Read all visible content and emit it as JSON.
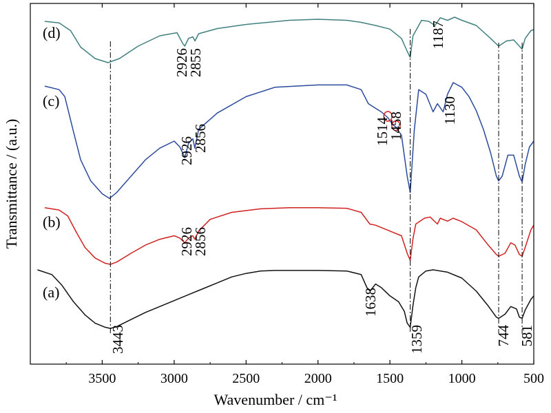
{
  "chart_data": {
    "type": "line",
    "xlabel": "Wavenumber / cm⁻¹",
    "ylabel": "Transmittance / (a.u.)",
    "xlim": [
      4000,
      500
    ],
    "x_inverted": true,
    "x_ticks": [
      "3500",
      "3000",
      "2500",
      "2000",
      "1500",
      "1000",
      "500"
    ],
    "x_tick_values": [
      3500,
      3000,
      2500,
      2000,
      1500,
      1000,
      500
    ],
    "grid": false,
    "series": [
      {
        "name": "(d)",
        "color": "#3f7f7f",
        "points": [
          [
            3900,
            0.12
          ],
          [
            3800,
            0.15
          ],
          [
            3720,
            0.3
          ],
          [
            3650,
            0.62
          ],
          [
            3550,
            0.84
          ],
          [
            3460,
            0.92
          ],
          [
            3380,
            0.84
          ],
          [
            3250,
            0.6
          ],
          [
            3100,
            0.4
          ],
          [
            2980,
            0.34
          ],
          [
            2940,
            0.55
          ],
          [
            2926,
            0.6
          ],
          [
            2900,
            0.45
          ],
          [
            2870,
            0.42
          ],
          [
            2855,
            0.5
          ],
          [
            2830,
            0.36
          ],
          [
            2700,
            0.26
          ],
          [
            2500,
            0.18
          ],
          [
            2200,
            0.1
          ],
          [
            2000,
            0.08
          ],
          [
            1800,
            0.1
          ],
          [
            1700,
            0.14
          ],
          [
            1600,
            0.2
          ],
          [
            1500,
            0.27
          ],
          [
            1420,
            0.45
          ],
          [
            1380,
            0.7
          ],
          [
            1359,
            0.82
          ],
          [
            1340,
            0.4
          ],
          [
            1280,
            0.1
          ],
          [
            1230,
            0.12
          ],
          [
            1187,
            0.2
          ],
          [
            1150,
            0.05
          ],
          [
            1100,
            0.1
          ],
          [
            1050,
            0.04
          ],
          [
            1000,
            0.1
          ],
          [
            900,
            0.2
          ],
          [
            800,
            0.45
          ],
          [
            744,
            0.6
          ],
          [
            690,
            0.5
          ],
          [
            640,
            0.48
          ],
          [
            600,
            0.6
          ],
          [
            581,
            0.66
          ],
          [
            560,
            0.45
          ],
          [
            520,
            0.3
          ],
          [
            500,
            0.28
          ]
        ]
      },
      {
        "name": "(c)",
        "color": "#2b4a9c",
        "points": [
          [
            3900,
            0.03
          ],
          [
            3800,
            0.06
          ],
          [
            3760,
            0.12
          ],
          [
            3700,
            0.42
          ],
          [
            3650,
            0.66
          ],
          [
            3580,
            0.84
          ],
          [
            3500,
            0.95
          ],
          [
            3450,
            0.99
          ],
          [
            3400,
            0.94
          ],
          [
            3300,
            0.8
          ],
          [
            3200,
            0.66
          ],
          [
            3100,
            0.56
          ],
          [
            3000,
            0.5
          ],
          [
            2960,
            0.55
          ],
          [
            2926,
            0.64
          ],
          [
            2900,
            0.52
          ],
          [
            2870,
            0.48
          ],
          [
            2856,
            0.56
          ],
          [
            2830,
            0.4
          ],
          [
            2700,
            0.26
          ],
          [
            2500,
            0.12
          ],
          [
            2300,
            0.04
          ],
          [
            2000,
            0.02
          ],
          [
            1800,
            0.02
          ],
          [
            1700,
            0.06
          ],
          [
            1650,
            0.18
          ],
          [
            1600,
            0.22
          ],
          [
            1560,
            0.25
          ],
          [
            1514,
            0.3
          ],
          [
            1480,
            0.36
          ],
          [
            1458,
            0.38
          ],
          [
            1420,
            0.45
          ],
          [
            1380,
            0.8
          ],
          [
            1359,
            0.94
          ],
          [
            1330,
            0.4
          ],
          [
            1300,
            0.06
          ],
          [
            1250,
            0.1
          ],
          [
            1200,
            0.25
          ],
          [
            1170,
            0.18
          ],
          [
            1130,
            0.25
          ],
          [
            1100,
            0.1
          ],
          [
            1060,
            0.0
          ],
          [
            1000,
            0.04
          ],
          [
            950,
            0.12
          ],
          [
            900,
            0.24
          ],
          [
            850,
            0.4
          ],
          [
            800,
            0.6
          ],
          [
            760,
            0.8
          ],
          [
            744,
            0.84
          ],
          [
            720,
            0.8
          ],
          [
            680,
            0.62
          ],
          [
            640,
            0.62
          ],
          [
            600,
            0.8
          ],
          [
            581,
            0.85
          ],
          [
            560,
            0.7
          ],
          [
            530,
            0.55
          ],
          [
            500,
            0.5
          ]
        ]
      },
      {
        "name": "(b)",
        "color": "#d22020",
        "points": [
          [
            3900,
            0.02
          ],
          [
            3800,
            0.06
          ],
          [
            3740,
            0.16
          ],
          [
            3680,
            0.44
          ],
          [
            3620,
            0.7
          ],
          [
            3550,
            0.88
          ],
          [
            3480,
            0.97
          ],
          [
            3443,
            0.99
          ],
          [
            3400,
            0.95
          ],
          [
            3300,
            0.8
          ],
          [
            3200,
            0.66
          ],
          [
            3100,
            0.56
          ],
          [
            3000,
            0.5
          ],
          [
            2960,
            0.54
          ],
          [
            2926,
            0.62
          ],
          [
            2900,
            0.54
          ],
          [
            2870,
            0.5
          ],
          [
            2856,
            0.56
          ],
          [
            2830,
            0.42
          ],
          [
            2750,
            0.22
          ],
          [
            2600,
            0.1
          ],
          [
            2400,
            0.04
          ],
          [
            2200,
            0.02
          ],
          [
            2000,
            0.02
          ],
          [
            1800,
            0.03
          ],
          [
            1700,
            0.1
          ],
          [
            1640,
            0.3
          ],
          [
            1600,
            0.32
          ],
          [
            1500,
            0.42
          ],
          [
            1420,
            0.5
          ],
          [
            1380,
            0.8
          ],
          [
            1359,
            0.92
          ],
          [
            1340,
            0.55
          ],
          [
            1320,
            0.3
          ],
          [
            1260,
            0.2
          ],
          [
            1220,
            0.18
          ],
          [
            1170,
            0.3
          ],
          [
            1150,
            0.2
          ],
          [
            1100,
            0.25
          ],
          [
            1060,
            0.2
          ],
          [
            1000,
            0.26
          ],
          [
            900,
            0.4
          ],
          [
            820,
            0.65
          ],
          [
            760,
            0.82
          ],
          [
            744,
            0.85
          ],
          [
            700,
            0.8
          ],
          [
            660,
            0.62
          ],
          [
            630,
            0.66
          ],
          [
            600,
            0.82
          ],
          [
            581,
            0.85
          ],
          [
            560,
            0.7
          ],
          [
            520,
            0.4
          ],
          [
            500,
            0.32
          ]
        ]
      },
      {
        "name": "(a)",
        "color": "#111111",
        "points": [
          [
            3950,
            0.0
          ],
          [
            3850,
            0.08
          ],
          [
            3780,
            0.26
          ],
          [
            3700,
            0.54
          ],
          [
            3620,
            0.76
          ],
          [
            3550,
            0.9
          ],
          [
            3480,
            0.97
          ],
          [
            3443,
            0.99
          ],
          [
            3400,
            0.96
          ],
          [
            3300,
            0.84
          ],
          [
            3200,
            0.72
          ],
          [
            3100,
            0.62
          ],
          [
            3000,
            0.52
          ],
          [
            2900,
            0.42
          ],
          [
            2800,
            0.32
          ],
          [
            2700,
            0.22
          ],
          [
            2600,
            0.12
          ],
          [
            2500,
            0.06
          ],
          [
            2400,
            0.02
          ],
          [
            2300,
            0.01
          ],
          [
            2200,
            0.01
          ],
          [
            2000,
            0.01
          ],
          [
            1800,
            0.02
          ],
          [
            1700,
            0.08
          ],
          [
            1660,
            0.3
          ],
          [
            1638,
            0.36
          ],
          [
            1600,
            0.24
          ],
          [
            1560,
            0.3
          ],
          [
            1500,
            0.44
          ],
          [
            1440,
            0.54
          ],
          [
            1400,
            0.7
          ],
          [
            1380,
            0.9
          ],
          [
            1359,
            0.97
          ],
          [
            1340,
            0.6
          ],
          [
            1320,
            0.3
          ],
          [
            1300,
            0.12
          ],
          [
            1250,
            0.02
          ],
          [
            1200,
            0.0
          ],
          [
            1100,
            0.04
          ],
          [
            1000,
            0.14
          ],
          [
            900,
            0.36
          ],
          [
            820,
            0.6
          ],
          [
            760,
            0.8
          ],
          [
            744,
            0.82
          ],
          [
            700,
            0.75
          ],
          [
            660,
            0.62
          ],
          [
            620,
            0.66
          ],
          [
            600,
            0.8
          ],
          [
            581,
            0.82
          ],
          [
            560,
            0.68
          ],
          [
            520,
            0.5
          ],
          [
            500,
            0.44
          ]
        ]
      }
    ],
    "peak_labels": [
      {
        "text": "2926",
        "series": "(d)"
      },
      {
        "text": "2855",
        "series": "(d)"
      },
      {
        "text": "1187",
        "series": "(d)"
      },
      {
        "text": "2926",
        "series": "(c)"
      },
      {
        "text": "2856",
        "series": "(c)"
      },
      {
        "text": "1514",
        "series": "(c)"
      },
      {
        "text": "1458",
        "series": "(c)"
      },
      {
        "text": "1130",
        "series": "(c)"
      },
      {
        "text": "2926",
        "series": "(b)"
      },
      {
        "text": "2856",
        "series": "(b)"
      },
      {
        "text": "1638",
        "series": "(a)"
      },
      {
        "text": "3443",
        "series": "(a)"
      },
      {
        "text": "1359",
        "series": "(a)"
      },
      {
        "text": "744",
        "series": "(a)"
      },
      {
        "text": "581",
        "series": "(a)"
      }
    ],
    "reference_lines": [
      3443,
      1359,
      744,
      581
    ],
    "circled_peaks": [
      1514,
      1458
    ],
    "circle_color": "#d22020"
  }
}
